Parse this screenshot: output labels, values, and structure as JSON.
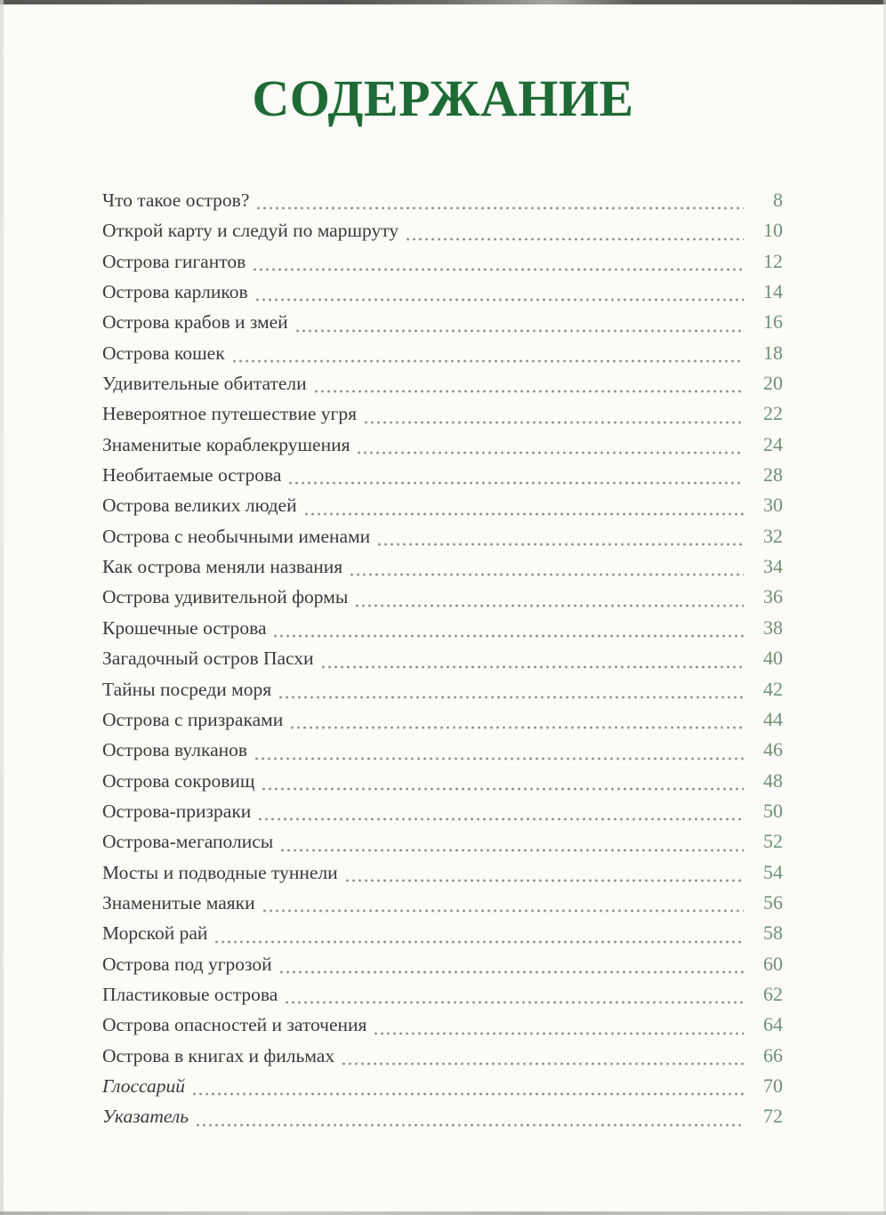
{
  "title": "СОДЕРЖАНИЕ",
  "colors": {
    "title_green": "#1e6b35",
    "page_number_green": "#6e9173",
    "body_text": "#3a3a3a",
    "dot_leader_grey": "#8f8f8f",
    "page_background": "#fcfbf8"
  },
  "toc": {
    "entries": [
      {
        "label": "Что такое остров?",
        "page": "8"
      },
      {
        "label": "Открой карту и следуй по маршруту",
        "page": "10"
      },
      {
        "label": "Острова гигантов",
        "page": "12"
      },
      {
        "label": "Острова карликов",
        "page": "14"
      },
      {
        "label": "Острова крабов и змей",
        "page": "16"
      },
      {
        "label": "Острова кошек",
        "page": "18"
      },
      {
        "label": "Удивительные обитатели",
        "page": "20"
      },
      {
        "label": "Невероятное путешествие угря",
        "page": "22"
      },
      {
        "label": "Знаменитые кораблекрушения",
        "page": "24"
      },
      {
        "label": "Необитаемые острова",
        "page": "28"
      },
      {
        "label": "Острова великих людей",
        "page": "30"
      },
      {
        "label": "Острова с необычными именами",
        "page": "32"
      },
      {
        "label": "Как острова меняли названия",
        "page": "34"
      },
      {
        "label": "Острова удивительной формы",
        "page": "36"
      },
      {
        "label": "Крошечные острова",
        "page": "38"
      },
      {
        "label": "Загадочный остров Пасхи",
        "page": "40"
      },
      {
        "label": "Тайны посреди моря",
        "page": "42"
      },
      {
        "label": "Острова с призраками",
        "page": "44"
      },
      {
        "label": "Острова вулканов",
        "page": "46"
      },
      {
        "label": "Острова сокровищ",
        "page": "48"
      },
      {
        "label": "Острова-призраки",
        "page": "50"
      },
      {
        "label": "Острова-мегаполисы",
        "page": "52"
      },
      {
        "label": "Мосты и подводные туннели",
        "page": "54"
      },
      {
        "label": "Знаменитые маяки",
        "page": "56"
      },
      {
        "label": "Морской рай",
        "page": "58"
      },
      {
        "label": "Острова под угрозой",
        "page": "60"
      },
      {
        "label": "Пластиковые острова",
        "page": "62"
      },
      {
        "label": "Острова опасностей и заточения",
        "page": "64"
      },
      {
        "label": "Острова в книгах и фильмах",
        "page": "66"
      },
      {
        "label": "Глоссарий",
        "page": "70",
        "italic": true
      },
      {
        "label": "Указатель",
        "page": "72",
        "italic": true
      }
    ]
  }
}
